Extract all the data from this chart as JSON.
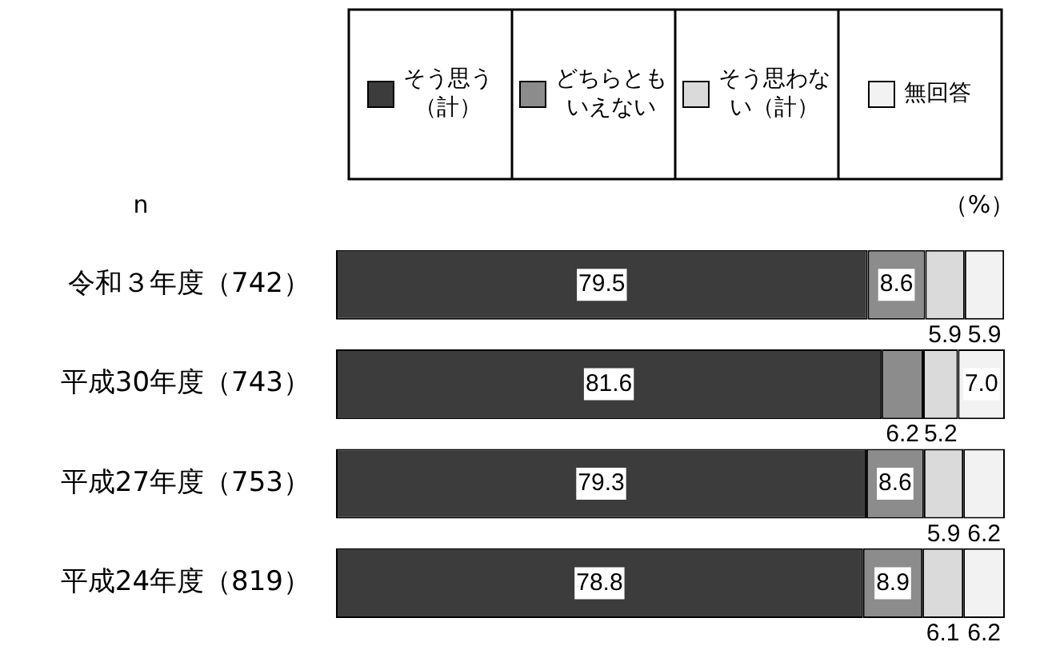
{
  "chart_data": {
    "type": "bar",
    "orientation": "horizontal",
    "stacked": true,
    "categories": [
      "令和３年度（742）",
      "平成30年度（743）",
      "平成27年度（753）",
      "平成24年度（819）"
    ],
    "series": [
      {
        "name": "そう思う（計）",
        "color": "#3c3c3c",
        "values": [
          79.5,
          81.6,
          79.3,
          78.8
        ],
        "value_labels": [
          "79.5",
          "81.6",
          "79.3",
          "78.8"
        ]
      },
      {
        "name": "どちらともいえない",
        "color": "#8c8c8c",
        "values": [
          8.6,
          6.2,
          8.6,
          8.9
        ],
        "value_labels": [
          "8.6",
          "6.2",
          "8.6",
          "8.9"
        ]
      },
      {
        "name": "そう思わない（計）",
        "color": "#dadada",
        "values": [
          5.9,
          5.2,
          5.9,
          6.1
        ],
        "value_labels": [
          "5.9",
          "5.2",
          "5.9",
          "6.1"
        ]
      },
      {
        "name": "無回答",
        "color": "#f2f2f2",
        "values": [
          5.9,
          7.0,
          6.2,
          6.2
        ],
        "value_labels": [
          "5.9",
          "7.0",
          "6.2",
          "6.2"
        ]
      }
    ],
    "xlim": [
      0,
      100
    ],
    "tick_labels": "y",
    "legend": "top",
    "annotations": [
      "n",
      "（%）"
    ]
  }
}
